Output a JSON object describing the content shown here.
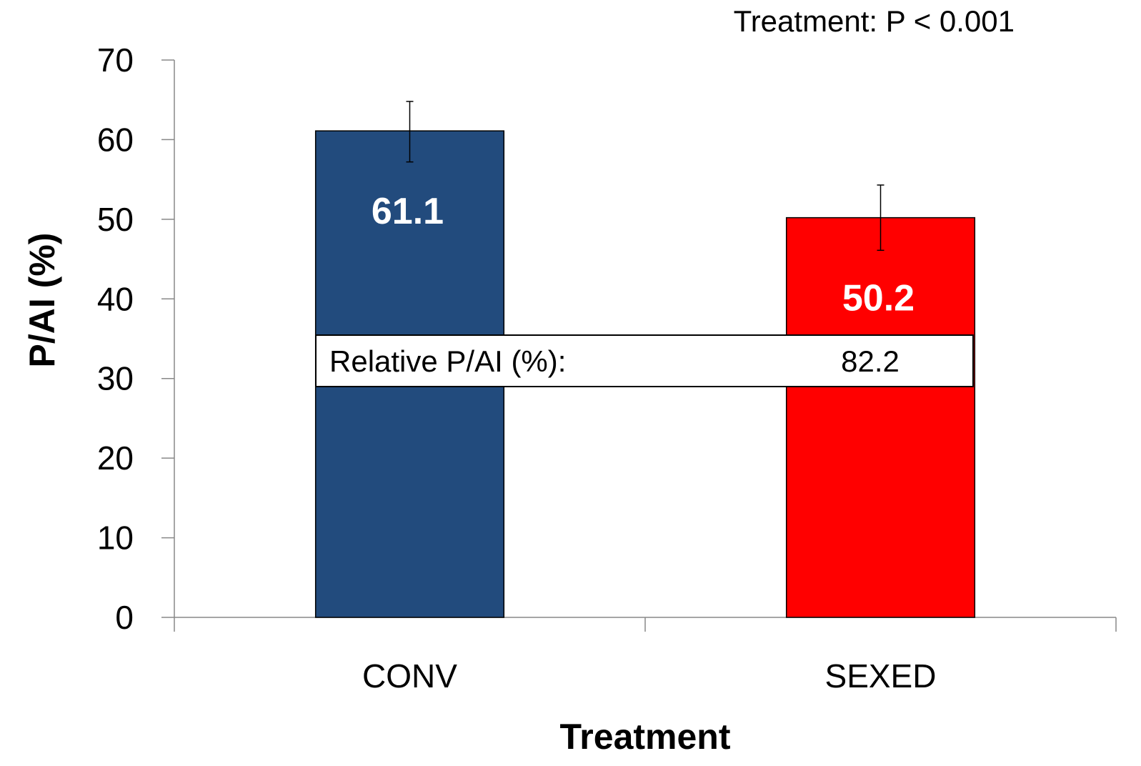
{
  "chart_data": {
    "type": "bar",
    "title": "",
    "annotation": "Treatment: P < 0.001",
    "xlabel": "Treatment",
    "ylabel": "P/AI (%)",
    "ylim": [
      0,
      70
    ],
    "yticks": [
      0,
      10,
      20,
      30,
      40,
      50,
      60,
      70
    ],
    "categories": [
      "CONV",
      "SEXED"
    ],
    "values": [
      61.1,
      50.2
    ],
    "value_labels": [
      "61.1",
      "50.2"
    ],
    "error_bars": [
      {
        "low": 57.2,
        "high": 64.8
      },
      {
        "low": 46.1,
        "high": 54.3
      }
    ],
    "colors": [
      "#224b7d",
      "#ff0000"
    ],
    "grid": false,
    "legend": "none",
    "inset_box": {
      "label": "Relative P/AI (%):",
      "value": "82.2"
    }
  }
}
